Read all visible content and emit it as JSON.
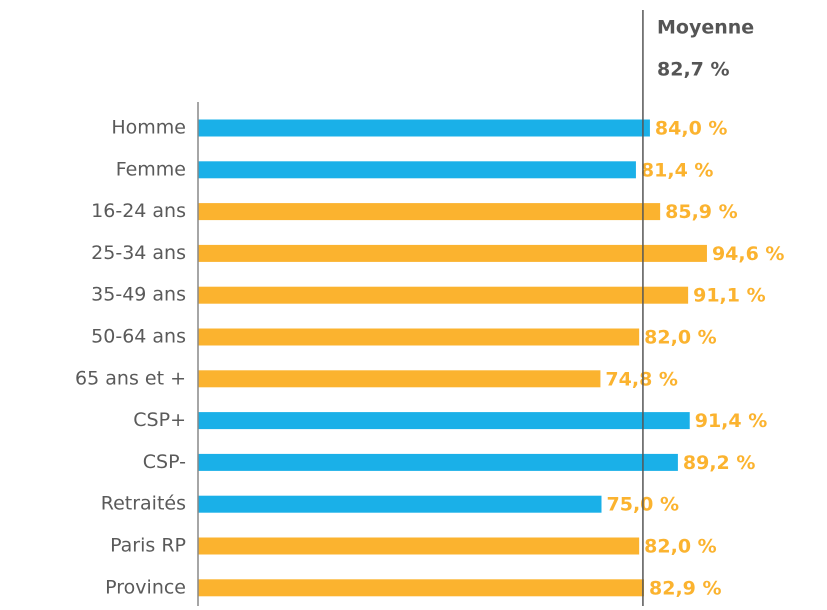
{
  "chart_data": {
    "type": "bar",
    "orientation": "horizontal",
    "categories": [
      "Homme",
      "Femme",
      "16-24 ans",
      "25-34 ans",
      "35-49 ans",
      "50-64 ans",
      "65 ans et +",
      "CSP+",
      "CSP-",
      "Retraités",
      "Paris RP",
      "Province"
    ],
    "values": [
      84.0,
      81.4,
      85.9,
      94.6,
      91.1,
      82.0,
      74.8,
      91.4,
      89.2,
      75.0,
      82.0,
      82.9
    ],
    "value_labels": [
      "84,0 %",
      "81,4 %",
      "85,9 %",
      "94,6 %",
      "91,1 %",
      "82,0 %",
      "74,8 %",
      "91,4 %",
      "89,2 %",
      "75,0 %",
      "82,0 %",
      "82,9 %"
    ],
    "colors": [
      "#1ab0e8",
      "#1ab0e8",
      "#fbb32f",
      "#fbb32f",
      "#fbb32f",
      "#fbb32f",
      "#fbb32f",
      "#1ab0e8",
      "#1ab0e8",
      "#1ab0e8",
      "#fbb32f",
      "#fbb32f"
    ],
    "xlim": [
      0,
      100
    ],
    "mean": {
      "label": "Moyenne",
      "value": 82.7,
      "value_label": "82,7 %"
    }
  }
}
